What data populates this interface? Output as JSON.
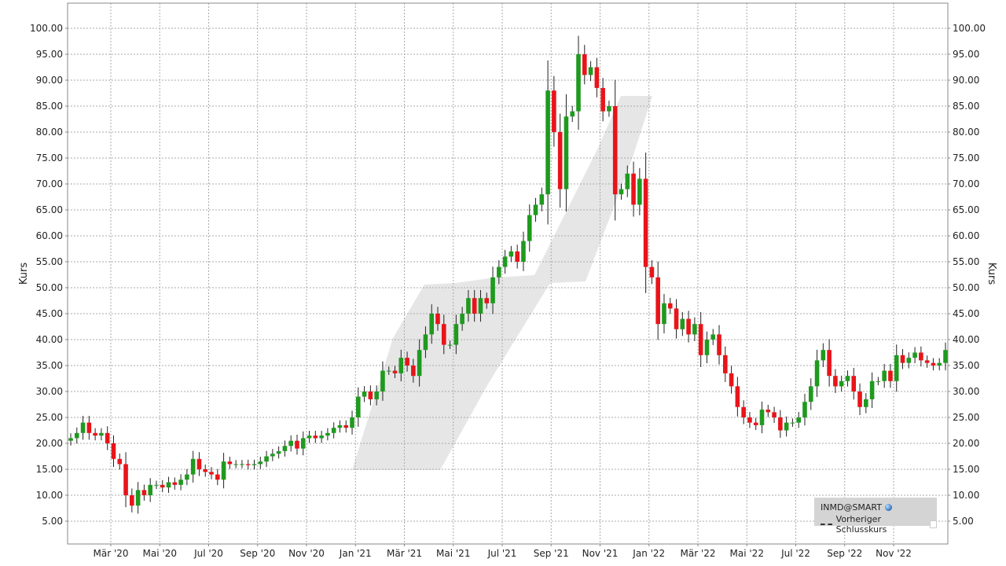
{
  "chart_data": {
    "type": "candlestick",
    "ylabel": "Kurs",
    "ylabel_right": "Kurs",
    "ylim": [
      0,
      105
    ],
    "y_ticks": [
      "5.00",
      "10.00",
      "15.00",
      "20.00",
      "25.00",
      "30.00",
      "35.00",
      "40.00",
      "45.00",
      "50.00",
      "55.00",
      "60.00",
      "65.00",
      "70.00",
      "75.00",
      "80.00",
      "85.00",
      "90.00",
      "95.00",
      "100.00"
    ],
    "x_ticks": [
      "Mär '20",
      "Mai '20",
      "Jul '20",
      "Sep '20",
      "Nov '20",
      "Jan '21",
      "Mär '21",
      "Mai '21",
      "Jul '21",
      "Sep '21",
      "Nov '21",
      "Jan '22",
      "Mär '22",
      "Mai '22",
      "Jul '22",
      "Sep '22",
      "Nov '22"
    ],
    "grid": true,
    "colors": {
      "up": "#1f9a1f",
      "down": "#e8141a",
      "band": "#e6e6e6",
      "grid": "#aaaaaa"
    },
    "trend_band_closes": [
      15.0,
      15.0,
      22.0,
      35.0,
      50.0,
      51.0,
      53.0,
      70.0,
      87.0
    ],
    "series": [
      {
        "closes": [
          21,
          22,
          24,
          22,
          21.5,
          22,
          20,
          17,
          16,
          10,
          8,
          11,
          10,
          12,
          12,
          11.5,
          12.5,
          12,
          13,
          14,
          17,
          15,
          14.5,
          14,
          13,
          16.5,
          16,
          16,
          16,
          15.8,
          16,
          16.5,
          17.5,
          18,
          18.5,
          19.5,
          20.5,
          19,
          21,
          21.5,
          21,
          21.5,
          22,
          23,
          23.5,
          23,
          25,
          29,
          30,
          28.5,
          30,
          34,
          34,
          33.5,
          36.5,
          35,
          33,
          38,
          41,
          45,
          43,
          39,
          39,
          43,
          45,
          48,
          45,
          48,
          47,
          52,
          54,
          56,
          57,
          55,
          59,
          64,
          66,
          68,
          88,
          80,
          69,
          83,
          84,
          95,
          91,
          92.5,
          88.5,
          84,
          85,
          68,
          69,
          72,
          66,
          71,
          54,
          52,
          43,
          47,
          46,
          42,
          44,
          41,
          43,
          37,
          40,
          41,
          37,
          33.5,
          31,
          27,
          25,
          24,
          23.5,
          26.5,
          26,
          25,
          22.5,
          24,
          24,
          25,
          28,
          31,
          36,
          38,
          33,
          31,
          32,
          33,
          30,
          27,
          28.5,
          32,
          32,
          34,
          32,
          37,
          35.5,
          36.5,
          37.5,
          36,
          35.5,
          35,
          35.5,
          38
        ]
      }
    ]
  },
  "legend": {
    "series_name": "INMD@SMART",
    "series_icon": "globe-icon",
    "prev_close_label": "Vorheriger Schlusskurs",
    "prev_close_icon": "dashed-line-icon"
  }
}
